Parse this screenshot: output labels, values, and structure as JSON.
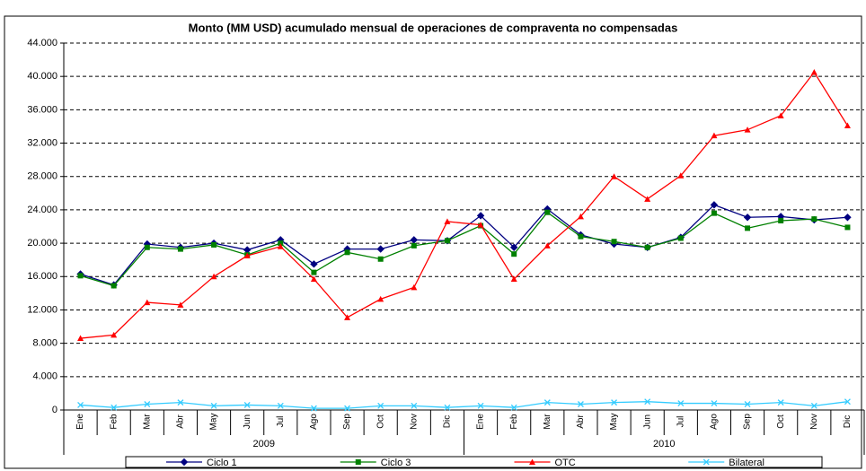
{
  "chart_data": {
    "type": "line",
    "title": "Monto (MM USD) acumulado mensual de operaciones de compraventa no compensadas",
    "categories": [
      "Ene",
      "Feb",
      "Mar",
      "Abr",
      "May",
      "Jun",
      "Jul",
      "Ago",
      "Sep",
      "Oct",
      "Nov",
      "Dic",
      "Ene",
      "Feb",
      "Mar",
      "Abr",
      "May",
      "Jun",
      "Jul",
      "Ago",
      "Sep",
      "Oct",
      "Nov",
      "Dic"
    ],
    "groups": [
      "2009",
      "2010"
    ],
    "series": [
      {
        "name": "Ciclo 1",
        "color": "#000080",
        "marker": "diamond",
        "values": [
          16300,
          15000,
          19900,
          19500,
          20000,
          19200,
          20400,
          17500,
          19300,
          19300,
          20400,
          20300,
          23300,
          19500,
          24100,
          21000,
          19900,
          19500,
          20700,
          24600,
          23100,
          23200,
          22800,
          23100
        ]
      },
      {
        "name": "Ciclo 3",
        "color": "#008000",
        "marker": "square",
        "values": [
          16100,
          14900,
          19500,
          19300,
          19800,
          18600,
          20000,
          16500,
          18900,
          18100,
          19700,
          20300,
          22100,
          18700,
          23700,
          20800,
          20200,
          19500,
          20600,
          23600,
          21800,
          22700,
          22900,
          21900
        ]
      },
      {
        "name": "OTC",
        "color": "#ff0000",
        "marker": "triangle",
        "values": [
          8600,
          9000,
          12900,
          12600,
          16000,
          18500,
          19600,
          15700,
          11100,
          13300,
          14700,
          22600,
          22200,
          15700,
          19700,
          23200,
          28000,
          25300,
          28100,
          32900,
          33600,
          35300,
          40500,
          34100
        ]
      },
      {
        "name": "Bilateral",
        "color": "#33ccff",
        "marker": "x",
        "values": [
          600,
          300,
          700,
          900,
          500,
          600,
          500,
          200,
          200,
          500,
          500,
          300,
          500,
          300,
          900,
          700,
          900,
          1000,
          800,
          800,
          700,
          900,
          500,
          1000
        ]
      }
    ],
    "ylim": [
      0,
      44000
    ],
    "yticks": [
      0,
      {
        "value": 4000,
        "label": "4.000"
      },
      {
        "value": 8000,
        "label": "8.000"
      },
      {
        "value": 12000,
        "label": "12.000"
      },
      {
        "value": 16000,
        "label": "16.000"
      },
      {
        "value": 20000,
        "label": "20.000"
      },
      {
        "value": 24000,
        "label": "24.000"
      },
      {
        "value": 28000,
        "label": "28.000"
      },
      {
        "value": 32000,
        "label": "32.000"
      },
      {
        "value": 36000,
        "label": "36.000"
      },
      {
        "value": 40000,
        "label": "40.000"
      },
      {
        "value": 44000,
        "label": "44.000"
      }
    ],
    "grid": true,
    "legend": "bottom"
  }
}
